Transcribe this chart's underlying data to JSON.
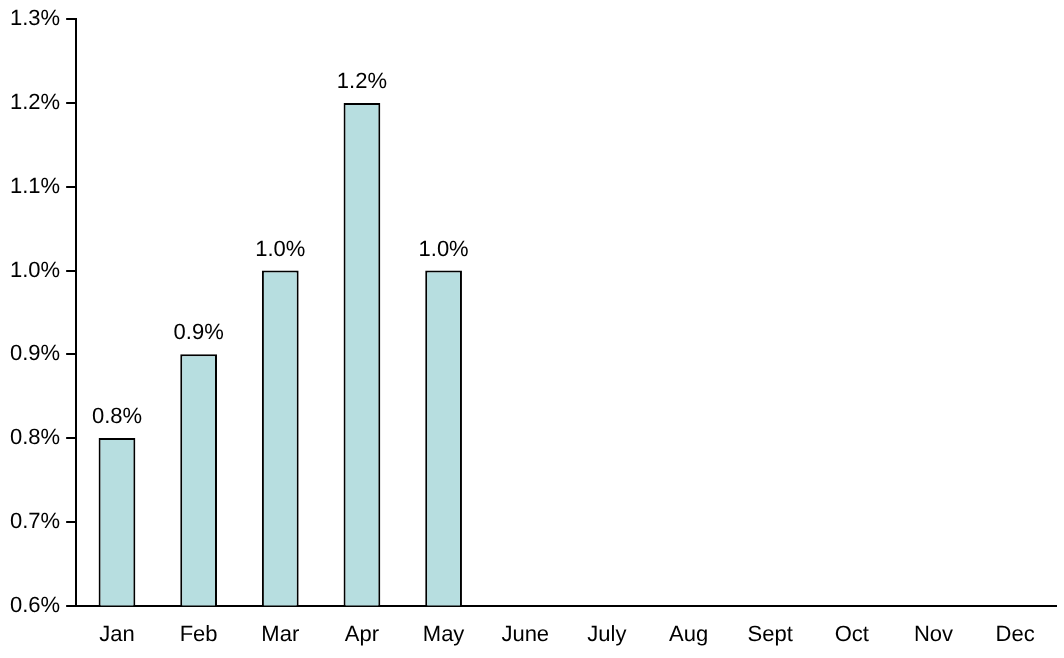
{
  "chart_data": {
    "type": "bar",
    "categories": [
      "Jan",
      "Feb",
      "Mar",
      "Apr",
      "May",
      "June",
      "July",
      "Aug",
      "Sept",
      "Oct",
      "Nov",
      "Dec"
    ],
    "values": [
      0.8,
      0.9,
      1.0,
      1.2,
      1.0,
      null,
      null,
      null,
      null,
      null,
      null,
      null
    ],
    "value_labels": [
      "0.8%",
      "0.9%",
      "1.0%",
      "1.2%",
      "1.0%",
      null,
      null,
      null,
      null,
      null,
      null,
      null
    ],
    "color": "#b7dee0",
    "ylim": [
      0.6,
      1.3
    ],
    "yticks": [
      {
        "value": 0.6,
        "label": "0.6%"
      },
      {
        "value": 0.7,
        "label": "0.7%"
      },
      {
        "value": 0.8,
        "label": "0.8%"
      },
      {
        "value": 0.9,
        "label": "0.9%"
      },
      {
        "value": 1.0,
        "label": "1.0%"
      },
      {
        "value": 1.1,
        "label": "1.1%"
      },
      {
        "value": 1.2,
        "label": "1.2%"
      },
      {
        "value": 1.3,
        "label": "1.3%"
      }
    ],
    "grid": false,
    "legend": false
  }
}
